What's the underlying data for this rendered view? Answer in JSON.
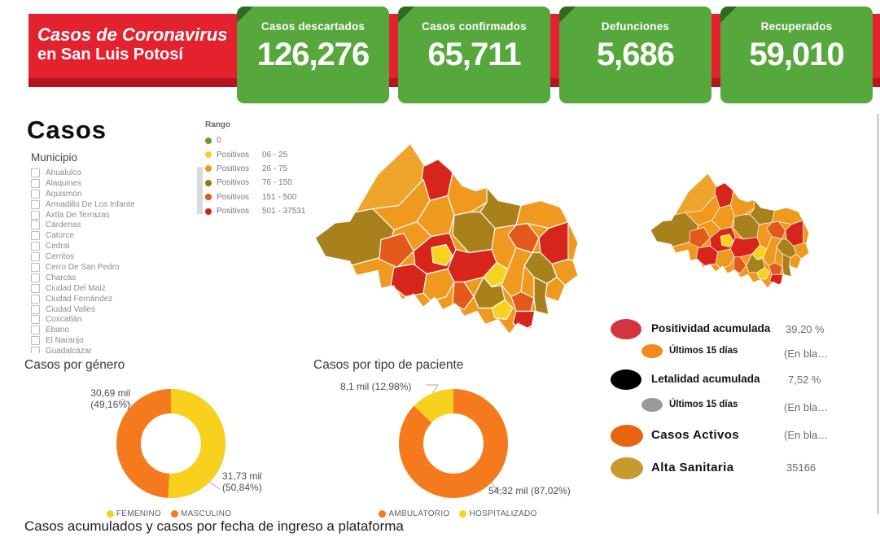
{
  "colors": {
    "red": "#E4212E",
    "red_dark": "#B8141F",
    "green": "#57A83C",
    "green_dark": "#2F6B1F",
    "map_yellow": "#F7D21E",
    "map_orange": "#F0991F",
    "map_orange_light": "#EFA42C",
    "map_olive": "#A9811C",
    "map_orangered": "#E4581B",
    "map_red": "#D8251C",
    "donut_yellow": "#F8D01E",
    "donut_orange": "#F5791D"
  },
  "header": {
    "title_line1": "Casos de Coronavirus",
    "title_line2": "en San Luis Potosí",
    "cards": [
      {
        "label": "Casos descartados",
        "value": "126,276"
      },
      {
        "label": "Casos confirmados",
        "value": "65,711"
      },
      {
        "label": "Defunciones",
        "value": "5,686"
      },
      {
        "label": "Recuperados",
        "value": "59,010"
      }
    ]
  },
  "filters": {
    "section_title": "Casos",
    "municipio_label": "Municipio",
    "municipios": [
      "Ahualulco",
      "Alaquines",
      "Aquismón",
      "Armadillo De Los Infante",
      "Axtla De Terrazas",
      "Cárdenas",
      "Catorce",
      "Cedral",
      "Cerritos",
      "Cerro De San Pedro",
      "Charcas",
      "Ciudad Del Maíz",
      "Ciudad Fernández",
      "Ciudad Valles",
      "Coxcatlán",
      "Ebano",
      "El Naranjo",
      "Guadalcázar"
    ]
  },
  "rango": {
    "title": "Rango",
    "items": [
      {
        "name": "0",
        "range": "",
        "color": "#5B9E31"
      },
      {
        "name": "Positivos",
        "range": "06 - 25",
        "color": "#F7CE1D"
      },
      {
        "name": "Positivos",
        "range": "26 - 75",
        "color": "#F0981E"
      },
      {
        "name": "Positivos",
        "range": "76 - 150",
        "color": "#9A7416"
      },
      {
        "name": "Positivos",
        "range": "151 - 500",
        "color": "#E4521C"
      },
      {
        "name": "Positivos",
        "range": "501 - 37531",
        "color": "#D1211A"
      }
    ]
  },
  "right_legend": {
    "items": [
      {
        "label": "Positividad acumulada",
        "value": "39,20 %",
        "color": "#D23540",
        "size": "lg"
      },
      {
        "label": "Últimos 15 días",
        "value": "(En bla…",
        "color": "#F6881F",
        "size": "sm"
      },
      {
        "label": "Letalidad acumulada",
        "value": "7,52 %",
        "color": "#000000",
        "size": "lg"
      },
      {
        "label": "Últimos 15 días",
        "value": "(En bla…",
        "color": "#9A9A9A",
        "size": "sm"
      },
      {
        "label": "Casos Activos",
        "value": "(En bla…",
        "color": "#E8640E",
        "size": "xl"
      },
      {
        "label": "Alta Sanitaria",
        "value": "35166",
        "color": "#C8992D",
        "size": "xl"
      }
    ]
  },
  "chart_data": [
    {
      "type": "pie",
      "title": "Casos por género",
      "labels": [
        "FEMENINO",
        "MASCULINO"
      ],
      "values_mil": [
        31.73,
        30.69
      ],
      "percents": [
        50.84,
        49.16
      ],
      "colors": [
        "#F8D01E",
        "#F5791D"
      ],
      "callouts": [
        "30,69 mil\n(49,16%)",
        "31,73 mil\n(50,84%)"
      ],
      "donut": true,
      "legend_position": "bottom"
    },
    {
      "type": "pie",
      "title": "Casos por tipo de paciente",
      "labels": [
        "AMBULATORIO",
        "HOSPITALIZADO"
      ],
      "values_mil": [
        54.32,
        8.1
      ],
      "percents": [
        87.02,
        12.98
      ],
      "colors": [
        "#F5791D",
        "#F8D01E"
      ],
      "callouts": [
        "8,1 mil (12,98%)",
        "54,32 mil (87,02%)"
      ],
      "donut": true,
      "legend_position": "bottom"
    },
    {
      "type": "heatmap",
      "title": "",
      "legend_title": "Rango",
      "bins": [
        {
          "label": "0",
          "color": "#5B9E31"
        },
        {
          "label": "Positivos 06 - 25",
          "color": "#F7CE1D"
        },
        {
          "label": "Positivos 26 - 75",
          "color": "#F0981E"
        },
        {
          "label": "Positivos 76 - 150",
          "color": "#9A7416"
        },
        {
          "label": "Positivos 151 - 500",
          "color": "#E4521C"
        },
        {
          "label": "Positivos 501 - 37531",
          "color": "#D1211A"
        }
      ]
    }
  ],
  "footer": {
    "title": "Casos acumulados y casos por fecha de ingreso a plataforma"
  }
}
